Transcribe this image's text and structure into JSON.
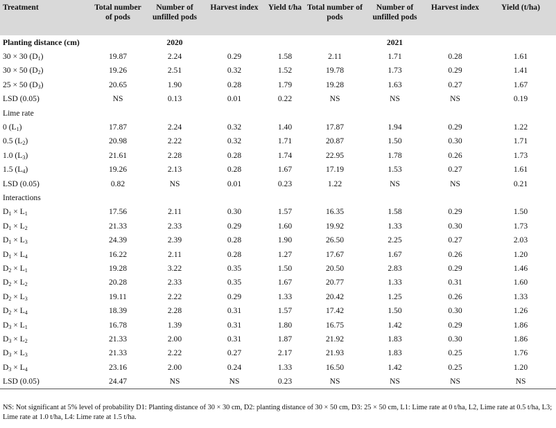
{
  "header": [
    "Treatment",
    "Total number of pods",
    "Number of unfilled pods",
    "Harvest index",
    "Yield t/ha",
    "Total number of pods",
    "Number of unfilled pods",
    "Harvest index",
    "Yield (t/ha)"
  ],
  "rows": [
    {
      "kind": "section",
      "label": "Planting distance (cm)",
      "year_a": "2020",
      "year_b": "2021"
    },
    {
      "label": "30 × 30 (D",
      "sub": "1",
      "after": ")",
      "vals": [
        "19.87",
        "2.24",
        "0.29",
        "1.58",
        "2.11",
        "1.71",
        "0.28",
        "1.61"
      ]
    },
    {
      "label": "30 × 50 (D",
      "sub": "2",
      "after": ")",
      "vals": [
        "19.26",
        "2.51",
        "0.32",
        "1.52",
        "19.78",
        "1.73",
        "0.29",
        "1.41"
      ]
    },
    {
      "label": "25 × 50 (D",
      "sub": "3",
      "after": ")",
      "vals": [
        "20.65",
        "1.90",
        "0.28",
        "1.79",
        "19.28",
        "1.63",
        "0.27",
        "1.67"
      ]
    },
    {
      "label": "LSD (0.05)",
      "vals": [
        "NS",
        "0.13",
        "0.01",
        "0.22",
        "NS",
        "NS",
        "NS",
        "0.19"
      ]
    },
    {
      "kind": "section",
      "label": "Lime rate"
    },
    {
      "label": "0 (L",
      "sub": "1",
      "after": ")",
      "vals": [
        "17.87",
        "2.24",
        "0.32",
        "1.40",
        "17.87",
        "1.94",
        "0.29",
        "1.22"
      ]
    },
    {
      "label": "0.5 (L",
      "sub": "2",
      "after": ")",
      "vals": [
        "20.98",
        "2.22",
        "0.32",
        "1.71",
        "20.87",
        "1.50",
        "0.30",
        "1.71"
      ]
    },
    {
      "label": "1.0 (L",
      "sub": "3",
      "after": ")",
      "vals": [
        "21.61",
        "2.28",
        "0.28",
        "1.74",
        "22.95",
        "1.78",
        "0.26",
        "1.73"
      ]
    },
    {
      "label": "1.5 (L",
      "sub": "4",
      "after": ")",
      "vals": [
        "19.26",
        "2.13",
        "0.28",
        "1.67",
        "17.19",
        "1.53",
        "0.27",
        "1.61"
      ]
    },
    {
      "label": "LSD (0.05)",
      "vals": [
        "0.82",
        "NS",
        "0.01",
        "0.23",
        "1.22",
        "NS",
        "NS",
        "0.21"
      ]
    },
    {
      "kind": "section",
      "label": "Interactions"
    },
    {
      "label": "D",
      "sub": "1",
      "after": " × L",
      "sub2": "1",
      "vals": [
        "17.56",
        "2.11",
        "0.30",
        "1.57",
        "16.35",
        "1.58",
        "0.29",
        "1.50"
      ]
    },
    {
      "label": "D",
      "sub": "1",
      "after": " × L",
      "sub2": "2",
      "vals": [
        "21.33",
        "2.33",
        "0.29",
        "1.60",
        "19.92",
        "1.33",
        "0.30",
        "1.73"
      ]
    },
    {
      "label": "D",
      "sub": "1",
      "after": " × L",
      "sub2": "3",
      "vals": [
        "24.39",
        "2.39",
        "0.28",
        "1.90",
        "26.50",
        "2.25",
        "0.27",
        "2.03"
      ]
    },
    {
      "label": "D",
      "sub": "1",
      "after": " × L",
      "sub2": "4",
      "vals": [
        "16.22",
        "2.11",
        "0.28",
        "1.27",
        "17.67",
        "1.67",
        "0.26",
        "1.20"
      ]
    },
    {
      "label": "D",
      "sub": "2",
      "after": " × L",
      "sub2": "1",
      "vals": [
        "19.28",
        "3.22",
        "0.35",
        "1.50",
        "20.50",
        "2.83",
        "0.29",
        "1.46"
      ]
    },
    {
      "label": "D",
      "sub": "2",
      "after": " × L",
      "sub2": "2",
      "vals": [
        "20.28",
        "2.33",
        "0.35",
        "1.67",
        "20.77",
        "1.33",
        "0.31",
        "1.60"
      ]
    },
    {
      "label": "D",
      "sub": "2",
      "after": " × L",
      "sub2": "3",
      "vals": [
        "19.11",
        "2.22",
        "0.29",
        "1.33",
        "20.42",
        "1.25",
        "0.26",
        "1.33"
      ]
    },
    {
      "label": "D",
      "sub": "2",
      "after": " × L",
      "sub2": "4",
      "vals": [
        "18.39",
        "2.28",
        "0.31",
        "1.57",
        "17.42",
        "1.50",
        "0.30",
        "1.26"
      ]
    },
    {
      "label": "D",
      "sub": "3",
      "after": " × L",
      "sub2": "1",
      "vals": [
        "16.78",
        "1.39",
        "0.31",
        "1.80",
        "16.75",
        "1.42",
        "0.29",
        "1.86"
      ]
    },
    {
      "label": "D",
      "sub": "3",
      "after": " × L",
      "sub2": "2",
      "vals": [
        "21.33",
        "2.00",
        "0.31",
        "1.87",
        "21.92",
        "1.83",
        "0.30",
        "1.86"
      ]
    },
    {
      "label": "D",
      "sub": "3",
      "after": " × L",
      "sub2": "3",
      "vals": [
        "21.33",
        "2.22",
        "0.27",
        "2.17",
        "21.93",
        "1.83",
        "0.25",
        "1.76"
      ]
    },
    {
      "label": "D",
      "sub": "3",
      "after": " × L",
      "sub2": "4",
      "vals": [
        "23.16",
        "2.00",
        "0.24",
        "1.33",
        "16.50",
        "1.42",
        "0.25",
        "1.20"
      ]
    },
    {
      "label": "LSD (0.05)",
      "vals": [
        "24.47",
        "NS",
        "NS",
        "0.23",
        "NS",
        "NS",
        "NS",
        "NS"
      ],
      "last": true
    }
  ],
  "footnote": "NS: Not significant at 5% level of probability D1: Planting distance of 30 × 30 cm, D2: planting distance of 30 × 50 cm, D3: 25 × 50 cm, L1: Lime rate at 0 t/ha, L2, Lime rate at 0.5 t/ha, L3; Lime rate at 1.0 t/ha, L4: Lime rate at 1.5 t/ha."
}
